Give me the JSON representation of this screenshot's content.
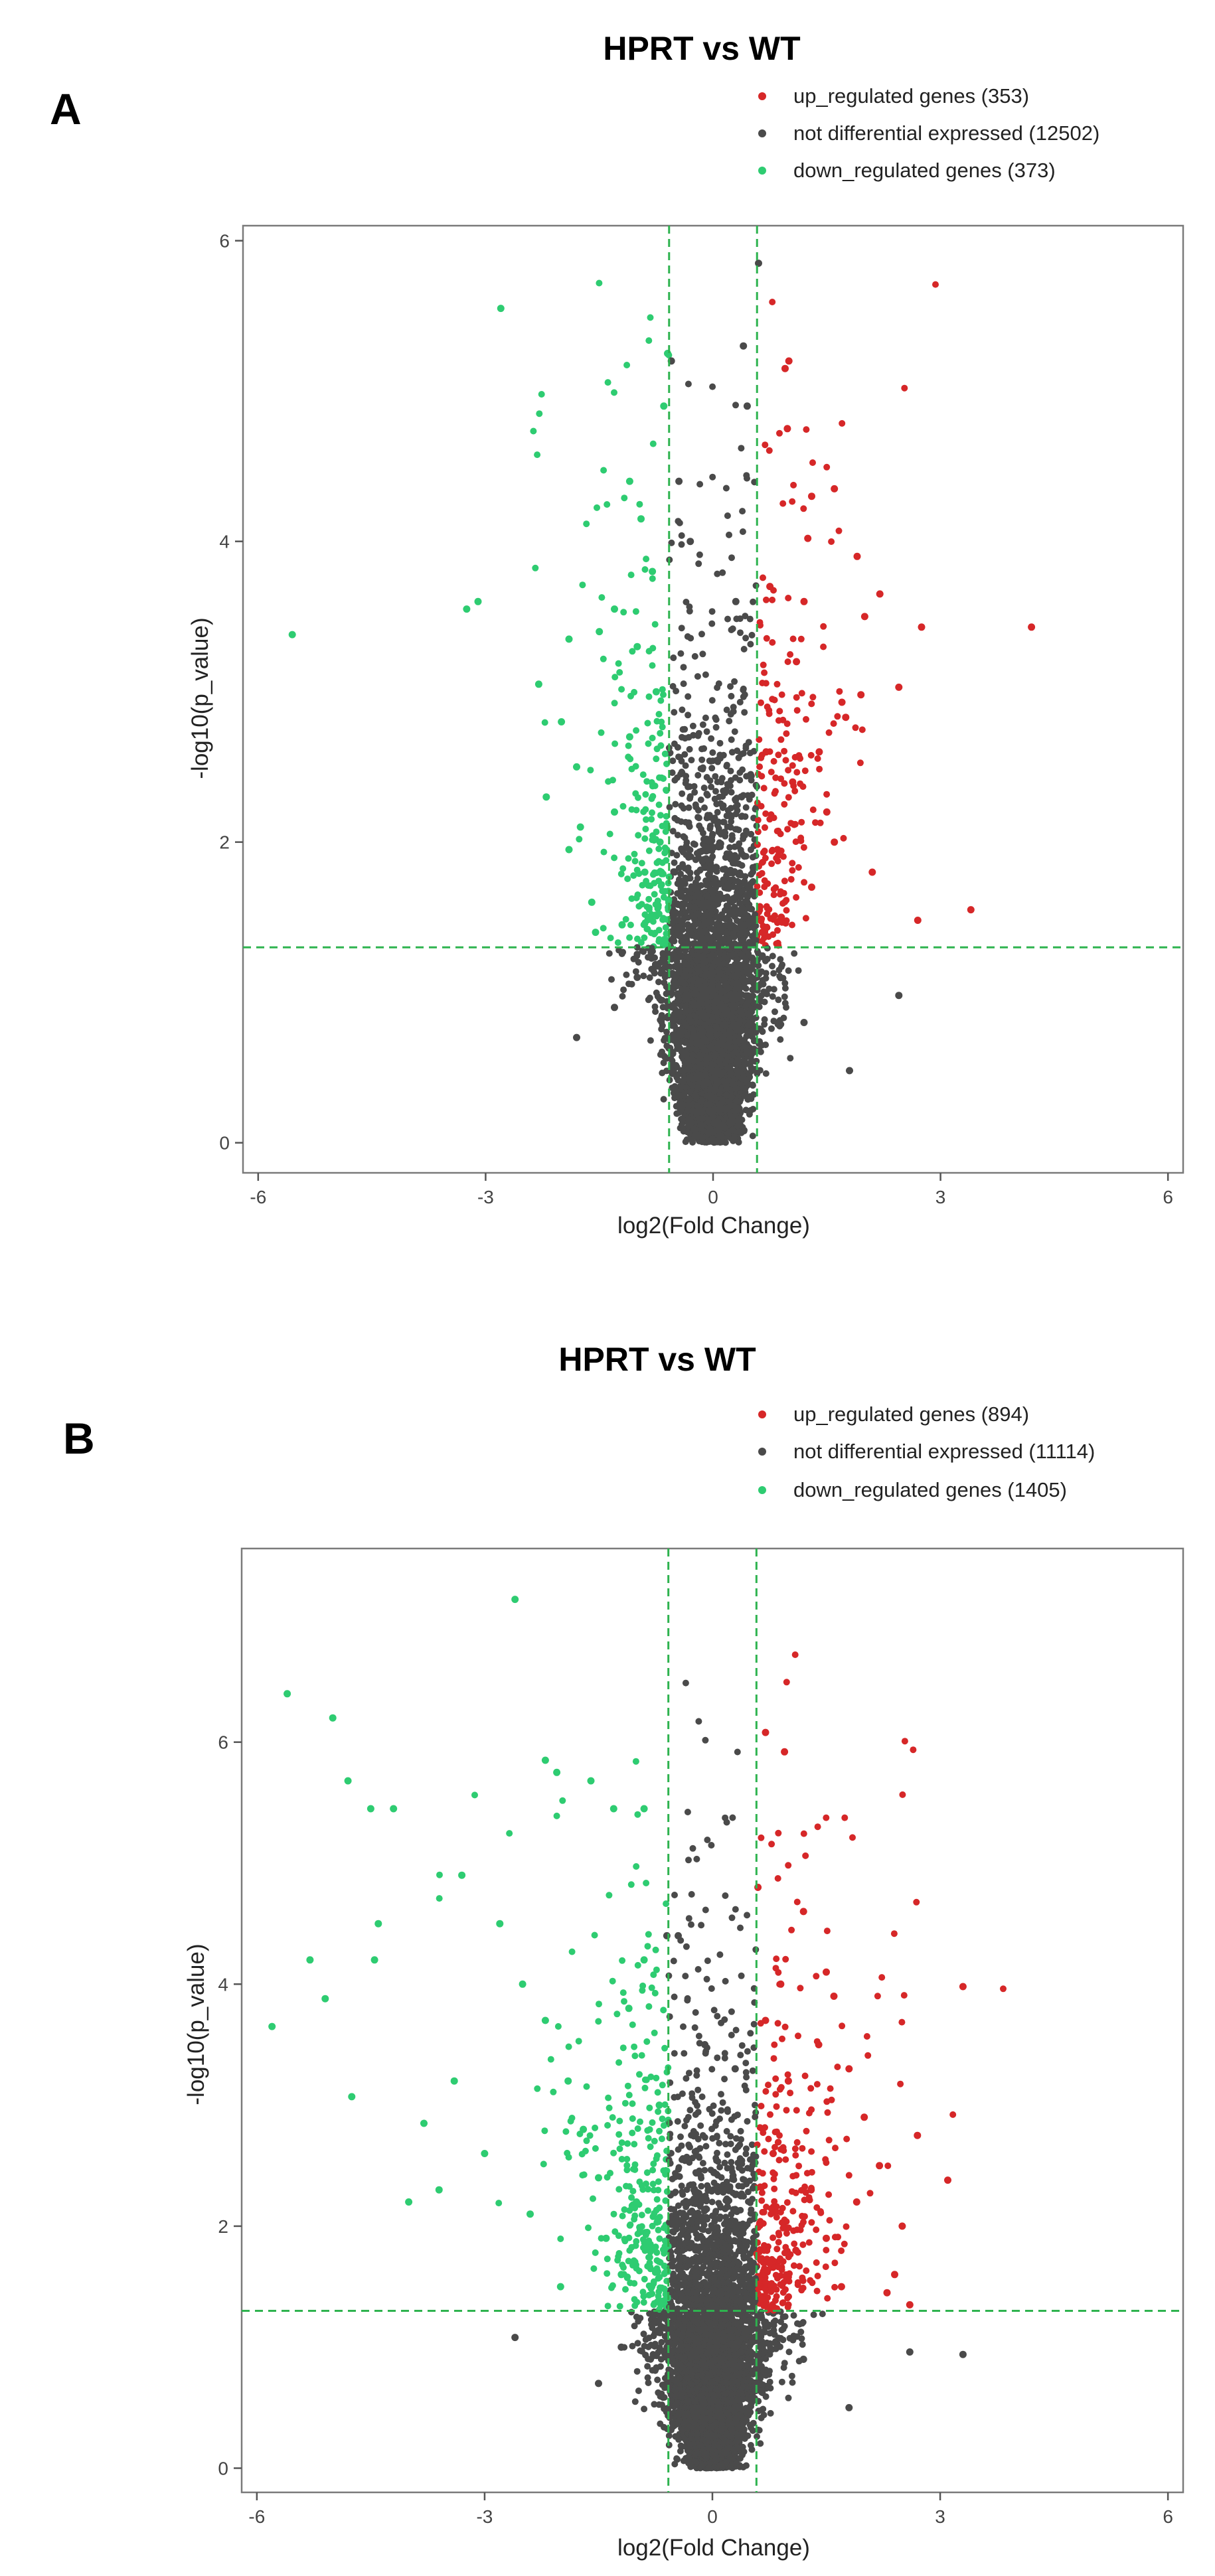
{
  "panels": [
    {
      "panel_label": "A",
      "legend": [
        {
          "label": "up_regulated genes (353)",
          "color": "#d62728"
        },
        {
          "label": "not differential expressed (12502)",
          "color": "#4a4a4a"
        },
        {
          "label": "down_regulated genes (373)",
          "color": "#2ecc71"
        }
      ]
    },
    {
      "panel_label": "B",
      "legend": [
        {
          "label": "up_regulated genes (894)",
          "color": "#d62728"
        },
        {
          "label": "not differential expressed (11114)",
          "color": "#4a4a4a"
        },
        {
          "label": "down_regulated genes (1405)",
          "color": "#2ecc71"
        }
      ]
    }
  ],
  "chart_data": [
    {
      "type": "scatter",
      "title": "HPRT vs WT",
      "xlabel": "log2(Fold Change)",
      "ylabel": "-log10(p_value)",
      "xlim": [
        -6.2,
        6.2
      ],
      "ylim": [
        -0.2,
        6.1
      ],
      "xticks": [
        -6,
        -3,
        0,
        3,
        6
      ],
      "yticks": [
        0,
        2,
        4,
        6
      ],
      "grid": false,
      "thresholds": {
        "fc_lines": [
          -0.58,
          0.58
        ],
        "p_line": 1.3
      },
      "series": [
        {
          "name": "up_regulated genes",
          "count": 353,
          "color": "#d62728",
          "points": [
            [
              4.2,
              3.43
            ],
            [
              3.4,
              1.55
            ],
            [
              2.7,
              1.48
            ],
            [
              2.75,
              3.43
            ],
            [
              2.2,
              3.65
            ],
            [
              2.45,
              3.03
            ],
            [
              1.6,
              4.35
            ],
            [
              1.9,
              3.9
            ],
            [
              2.0,
              3.5
            ],
            [
              1.95,
              2.98
            ],
            [
              1.7,
              2.93
            ],
            [
              1.75,
              2.83
            ],
            [
              2.1,
              1.8
            ],
            [
              1.3,
              4.3
            ],
            [
              1.25,
              4.02
            ],
            [
              1.0,
              5.2
            ],
            [
              0.95,
              5.15
            ],
            [
              0.98,
              4.75
            ],
            [
              1.2,
              3.6
            ],
            [
              1.1,
              3.2
            ],
            [
              1.4,
              2.6
            ],
            [
              1.5,
              2.2
            ],
            [
              1.6,
              2.0
            ],
            [
              1.3,
              1.7
            ],
            [
              1.05,
              2.4
            ],
            [
              0.85,
              1.95
            ],
            [
              0.75,
              3.7
            ],
            [
              0.7,
              2.6
            ],
            [
              0.9,
              1.5
            ],
            [
              0.65,
              1.4
            ]
          ]
        },
        {
          "name": "not differential expressed",
          "count": 12502,
          "color": "#4a4a4a",
          "points": [
            [
              0.6,
              5.85
            ],
            [
              -0.55,
              5.2
            ],
            [
              0.4,
              5.3
            ],
            [
              0.45,
              4.9
            ],
            [
              -0.3,
              4.0
            ],
            [
              -0.45,
              4.4
            ],
            [
              0.3,
              3.6
            ],
            [
              2.45,
              0.98
            ],
            [
              1.8,
              0.48
            ],
            [
              -1.8,
              0.7
            ],
            [
              -1.3,
              0.9
            ],
            [
              1.2,
              0.8
            ],
            [
              -1.0,
              1.1
            ]
          ]
        },
        {
          "name": "down_regulated genes",
          "count": 373,
          "color": "#2ecc71",
          "points": [
            [
              -5.55,
              3.38
            ],
            [
              -3.1,
              3.6
            ],
            [
              -3.25,
              3.55
            ],
            [
              -2.8,
              5.55
            ],
            [
              -0.6,
              5.25
            ],
            [
              -0.65,
              4.9
            ],
            [
              -1.1,
              4.4
            ],
            [
              -0.95,
              4.15
            ],
            [
              -0.8,
              3.8
            ],
            [
              -1.3,
              3.55
            ],
            [
              -1.5,
              3.4
            ],
            [
              -1.9,
              3.35
            ],
            [
              -2.3,
              3.05
            ],
            [
              -2.0,
              2.8
            ],
            [
              -1.8,
              2.5
            ],
            [
              -1.9,
              1.95
            ],
            [
              -1.6,
              1.6
            ],
            [
              -1.3,
              2.2
            ],
            [
              -1.1,
              2.7
            ],
            [
              -1.2,
              1.45
            ],
            [
              -0.9,
              1.8
            ],
            [
              -0.75,
              3.0
            ],
            [
              -2.2,
              2.3
            ],
            [
              -1.75,
              2.1
            ],
            [
              -1.55,
              1.4
            ],
            [
              -1.0,
              3.3
            ],
            [
              -0.7,
              2.0
            ],
            [
              -0.85,
              1.5
            ]
          ]
        }
      ]
    },
    {
      "type": "scatter",
      "title": "HPRT vs WT",
      "xlabel": "log2(Fold Change)",
      "ylabel": "-log10(p_value)",
      "xlim": [
        -6.2,
        6.2
      ],
      "ylim": [
        -0.2,
        7.6
      ],
      "xticks": [
        -6,
        -3,
        0,
        3,
        6
      ],
      "yticks": [
        0,
        2,
        4,
        6
      ],
      "grid": false,
      "thresholds": {
        "fc_lines": [
          -0.58,
          0.58
        ],
        "p_line": 1.3
      },
      "series": [
        {
          "name": "up_regulated genes",
          "count": 894,
          "color": "#d62728",
          "points": [
            [
              3.3,
              3.98
            ],
            [
              2.7,
              2.75
            ],
            [
              3.1,
              2.38
            ],
            [
              2.6,
              1.35
            ],
            [
              0.7,
              6.08
            ],
            [
              0.95,
              5.92
            ],
            [
              0.6,
              4.8
            ],
            [
              1.2,
              4.6
            ],
            [
              1.5,
              4.1
            ],
            [
              1.6,
              3.9
            ],
            [
              1.8,
              3.3
            ],
            [
              2.0,
              2.9
            ],
            [
              2.2,
              2.5
            ],
            [
              2.5,
              2.0
            ],
            [
              2.4,
              1.6
            ],
            [
              2.3,
              1.45
            ],
            [
              1.4,
              3.5
            ],
            [
              1.0,
              3.2
            ],
            [
              0.8,
              2.6
            ],
            [
              1.9,
              2.2
            ],
            [
              1.1,
              1.8
            ],
            [
              1.7,
              1.5
            ],
            [
              0.9,
              4.0
            ],
            [
              0.7,
              3.7
            ],
            [
              1.3,
              2.3
            ],
            [
              1.5,
              1.9
            ],
            [
              0.65,
              1.4
            ]
          ]
        },
        {
          "name": "not differential expressed",
          "count": 11114,
          "color": "#4a4a4a",
          "points": [
            [
              -0.6,
              4.4
            ],
            [
              -0.45,
              4.4
            ],
            [
              -0.1,
              3.5
            ],
            [
              0.3,
              3.3
            ],
            [
              -2.6,
              1.08
            ],
            [
              3.3,
              0.94
            ],
            [
              2.6,
              0.96
            ],
            [
              -1.5,
              0.7
            ],
            [
              1.8,
              0.5
            ],
            [
              1.2,
              0.9
            ],
            [
              -1.2,
              1.0
            ]
          ]
        },
        {
          "name": "down_regulated genes",
          "count": 1405,
          "color": "#2ecc71",
          "points": [
            [
              -2.6,
              7.18
            ],
            [
              -5.6,
              6.4
            ],
            [
              -5.0,
              6.2
            ],
            [
              -4.8,
              5.68
            ],
            [
              -4.5,
              5.45
            ],
            [
              -4.2,
              5.45
            ],
            [
              -2.2,
              5.85
            ],
            [
              -2.05,
              5.75
            ],
            [
              -1.6,
              5.68
            ],
            [
              -1.3,
              5.45
            ],
            [
              -0.9,
              5.45
            ],
            [
              -5.8,
              3.65
            ],
            [
              -5.3,
              4.2
            ],
            [
              -5.1,
              3.88
            ],
            [
              -4.75,
              3.07
            ],
            [
              -4.45,
              4.2
            ],
            [
              -4.0,
              2.2
            ],
            [
              -3.8,
              2.85
            ],
            [
              -3.4,
              3.2
            ],
            [
              -3.0,
              2.6
            ],
            [
              -3.3,
              4.9
            ],
            [
              -2.8,
              4.5
            ],
            [
              -2.5,
              4.0
            ],
            [
              -2.2,
              3.7
            ],
            [
              -1.9,
              3.2
            ],
            [
              -1.7,
              2.8
            ],
            [
              -1.5,
              2.4
            ],
            [
              -1.4,
              1.9
            ],
            [
              -1.2,
              1.6
            ],
            [
              -1.0,
              2.2
            ],
            [
              -0.8,
              1.5
            ],
            [
              -0.7,
              3.0
            ],
            [
              -1.1,
              3.8
            ],
            [
              -2.4,
              2.1
            ],
            [
              -2.0,
              1.5
            ],
            [
              -3.6,
              2.3
            ],
            [
              -0.9,
              4.2
            ],
            [
              -4.4,
              4.5
            ]
          ]
        }
      ]
    }
  ]
}
